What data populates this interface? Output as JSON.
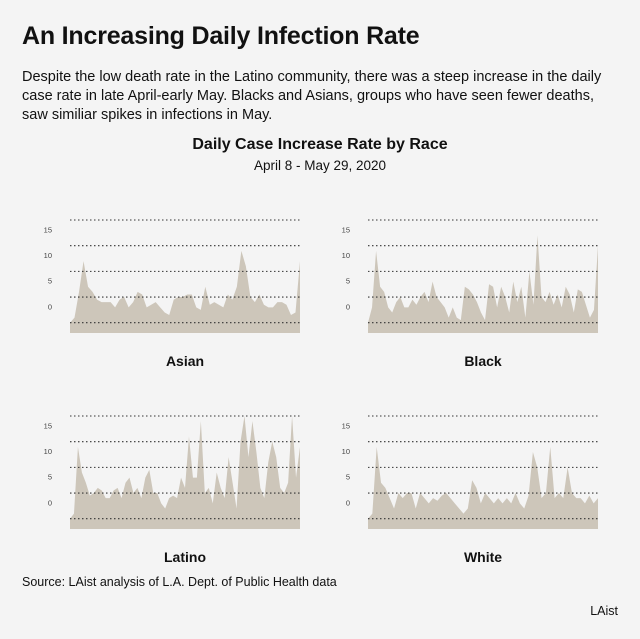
{
  "header": {
    "title": "An Increasing Daily Infection Rate",
    "subtitle": "Despite the low death rate in the Latino community, there was a steep increase in the daily case rate in late April-early May. Blacks and Asians, groups who have seen fewer deaths, saw similiar spikes in infections in May."
  },
  "chart_data": {
    "type": "area",
    "title": "Daily Case Increase Rate by Race",
    "subtitle": "April 8 - May 29, 2020",
    "xlabel": "",
    "ylabel": "",
    "ylim": [
      -5,
      17
    ],
    "yticks": [
      0,
      5,
      10,
      15
    ],
    "gridlines": [
      -3,
      2,
      7,
      12,
      17
    ],
    "grid": true,
    "series": [
      {
        "name": "Asian",
        "values": [
          -3,
          -2,
          3,
          9,
          4,
          3,
          1.5,
          1,
          1,
          1,
          0,
          1.5,
          2,
          0,
          1,
          3,
          2.5,
          0,
          0.5,
          1,
          0,
          -1,
          -1.5,
          1.5,
          2,
          2,
          2.5,
          2.5,
          0,
          -0.5,
          4,
          0.5,
          1,
          0.5,
          0,
          2.5,
          1.5,
          4,
          11,
          8,
          2,
          1,
          2.5,
          0.5,
          0,
          0,
          1,
          1,
          0.5,
          -1.5,
          -1,
          9
        ]
      },
      {
        "name": "Black",
        "values": [
          -3,
          0,
          11,
          4,
          3,
          0,
          -1,
          1,
          2,
          0,
          0,
          1.5,
          0.5,
          2,
          3,
          1,
          5,
          2,
          1,
          0,
          -2,
          0,
          -2,
          -2.5,
          4,
          3.5,
          2.5,
          1,
          -1,
          -2.5,
          4.5,
          4,
          0,
          4,
          2,
          -1,
          5,
          1,
          4,
          -2,
          7,
          0.5,
          14,
          2,
          1,
          3,
          0.5,
          2.5,
          0,
          4,
          2.5,
          -1,
          3.5,
          3,
          0.5,
          -2,
          -0.5,
          12
        ]
      },
      {
        "name": "Latino",
        "values": [
          -3,
          -2,
          11,
          6,
          4,
          1.5,
          2,
          3,
          2.5,
          1,
          1,
          2.5,
          3,
          1,
          4,
          5,
          2,
          3,
          1,
          5,
          6.5,
          2,
          2,
          0,
          -1,
          1,
          1.5,
          1,
          5,
          3,
          13,
          5,
          5,
          16,
          2,
          3,
          0,
          6,
          3,
          1,
          9,
          4,
          -1,
          12,
          17,
          9,
          16,
          10,
          3,
          1,
          8,
          12,
          9,
          3,
          2,
          4,
          17,
          5,
          11
        ]
      },
      {
        "name": "White",
        "values": [
          -3,
          -2,
          11,
          4,
          3,
          1,
          -1,
          2,
          1,
          2,
          2,
          -1,
          2,
          1,
          0,
          1,
          0.5,
          1.5,
          2,
          1,
          0,
          -1,
          -2,
          -1,
          4.5,
          3,
          0,
          2,
          1,
          0,
          1,
          0,
          1,
          0,
          2,
          0,
          -1,
          1.5,
          10,
          7,
          1,
          2,
          11,
          1,
          2,
          1,
          7,
          2,
          1,
          1,
          0,
          1.5,
          0,
          1
        ]
      }
    ]
  },
  "source": "Source: LAist analysis of L.A. Dept. of Public Health data",
  "credit": "LAist"
}
